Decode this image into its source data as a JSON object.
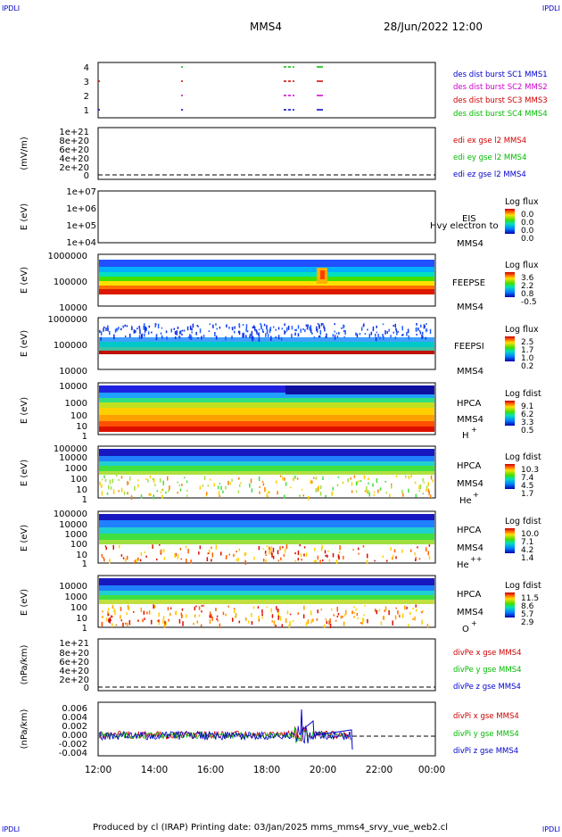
{
  "header": {
    "corner_left": "IPDLI",
    "corner_right": "IPDLI",
    "mission": "MMS4",
    "datetime": "28/Jun/2022 12:00"
  },
  "footer": {
    "corner_left": "IPDLI",
    "corner_right": "IPDLI",
    "credit": "Produced by cl (IRAP)   Printing date: 03/Jan/2025   mms_mms4_srvy_vue_web2.cl"
  },
  "colors": {
    "blue": "#0000cc",
    "red": "#cc0000",
    "green": "#00bb00",
    "magenta": "#cc00cc"
  },
  "chart_data": [
    {
      "type": "line",
      "panel": "burst",
      "ylabel": "",
      "yticks": [
        "4",
        "3",
        "2",
        "1"
      ],
      "legend": [
        {
          "label": "des dist burst SC1 MMS1",
          "color": "#0000cc"
        },
        {
          "label": "des dist burst SC2 MMS2",
          "color": "#cc00cc"
        },
        {
          "label": "des dist burst SC3 MMS3",
          "color": "#cc0000"
        },
        {
          "label": "des dist burst SC4 MMS4",
          "color": "#00bb00"
        }
      ]
    },
    {
      "type": "line",
      "panel": "edi",
      "ylabel": "(mV/m)",
      "yticks": [
        "1e+21",
        "8e+20",
        "6e+20",
        "4e+20",
        "2e+20",
        "0"
      ],
      "legend": [
        {
          "label": "edi ex gse l2 MMS4",
          "color": "#cc0000"
        },
        {
          "label": "edi ey gse l2 MMS4",
          "color": "#00bb00"
        },
        {
          "label": "edi ez gse l2 MMS4",
          "color": "#0000cc"
        }
      ]
    },
    {
      "type": "heatmap",
      "panel": "eis",
      "ylabel": "E (eV)",
      "yticks": [
        "1e+07",
        "1e+06",
        "1e+05",
        "1e+04"
      ],
      "labels": [
        "EIS",
        "MMS4"
      ],
      "overlay": "Hvy electron to",
      "colorbar": {
        "title": "Log flux",
        "ticks": [
          "0.0",
          "0.0",
          "0.0",
          "0.0"
        ]
      }
    },
    {
      "type": "heatmap",
      "panel": "feepse",
      "ylabel": "E (eV)",
      "yticks": [
        "1000000",
        "100000",
        "10000"
      ],
      "labels": [
        "FEEPSE",
        "MMS4"
      ],
      "colorbar": {
        "title": "Log flux",
        "ticks": [
          "3.6",
          "2.2",
          "0.8",
          "-0.5"
        ]
      }
    },
    {
      "type": "heatmap",
      "panel": "feepsi",
      "ylabel": "E (eV)",
      "yticks": [
        "1000000",
        "100000",
        "10000"
      ],
      "labels": [
        "FEEPSI",
        "MMS4"
      ],
      "colorbar": {
        "title": "Log flux",
        "ticks": [
          "2.5",
          "1.7",
          "1.0",
          "0.2"
        ]
      }
    },
    {
      "type": "heatmap",
      "panel": "hpca-h",
      "ylabel": "E (eV)",
      "yticks": [
        "10000",
        "1000",
        "100",
        "10",
        "1"
      ],
      "labels": [
        "HPCA",
        "MMS4"
      ],
      "species": "H",
      "charge": "+",
      "colorbar": {
        "title": "Log fdist",
        "ticks": [
          "9.1",
          "6.2",
          "3.3",
          "0.5"
        ]
      }
    },
    {
      "type": "heatmap",
      "panel": "hpca-he",
      "ylabel": "E (eV)",
      "yticks": [
        "100000",
        "10000",
        "1000",
        "100",
        "10",
        "1"
      ],
      "labels": [
        "HPCA",
        "MMS4"
      ],
      "species": "He",
      "charge": "+",
      "colorbar": {
        "title": "Log fdist",
        "ticks": [
          "10.3",
          "7.4",
          "4.5",
          "1.7"
        ]
      }
    },
    {
      "type": "heatmap",
      "panel": "hpca-he2",
      "ylabel": "E (eV)",
      "yticks": [
        "100000",
        "10000",
        "1000",
        "100",
        "10",
        "1"
      ],
      "labels": [
        "HPCA",
        "MMS4"
      ],
      "species": "He",
      "charge": "++",
      "colorbar": {
        "title": "Log fdist",
        "ticks": [
          "10.0",
          "7.1",
          "4.2",
          "1.4"
        ]
      }
    },
    {
      "type": "heatmap",
      "panel": "hpca-o",
      "ylabel": "E (eV)",
      "yticks": [
        "10000",
        "1000",
        "100",
        "10",
        "1"
      ],
      "labels": [
        "HPCA",
        "MMS4"
      ],
      "species": "O",
      "charge": "+",
      "colorbar": {
        "title": "Log fdist",
        "ticks": [
          "11.5",
          "8.6",
          "5.7",
          "2.9"
        ]
      }
    },
    {
      "type": "line",
      "panel": "divpe",
      "ylabel": "(nPa/km)",
      "yticks": [
        "1e+21",
        "8e+20",
        "6e+20",
        "4e+20",
        "2e+20",
        "0"
      ],
      "legend": [
        {
          "label": "divPe x gse MMS4",
          "color": "#cc0000"
        },
        {
          "label": "divPe y gse MMS4",
          "color": "#00bb00"
        },
        {
          "label": "divPe z gse MMS4",
          "color": "#0000cc"
        }
      ]
    },
    {
      "type": "line",
      "panel": "divpi",
      "ylabel": "(nPa/km)",
      "yticks": [
        "0.006",
        "0.004",
        "0.002",
        "0.000",
        "-0.002",
        "-0.004"
      ],
      "legend": [
        {
          "label": "divPi x gse MMS4",
          "color": "#cc0000"
        },
        {
          "label": "divPi y gse MMS4",
          "color": "#00bb00"
        },
        {
          "label": "divPi z gse MMS4",
          "color": "#0000cc"
        }
      ]
    }
  ],
  "time_axis": [
    "12:00",
    "14:00",
    "16:00",
    "18:00",
    "20:00",
    "22:00",
    "00:00"
  ]
}
